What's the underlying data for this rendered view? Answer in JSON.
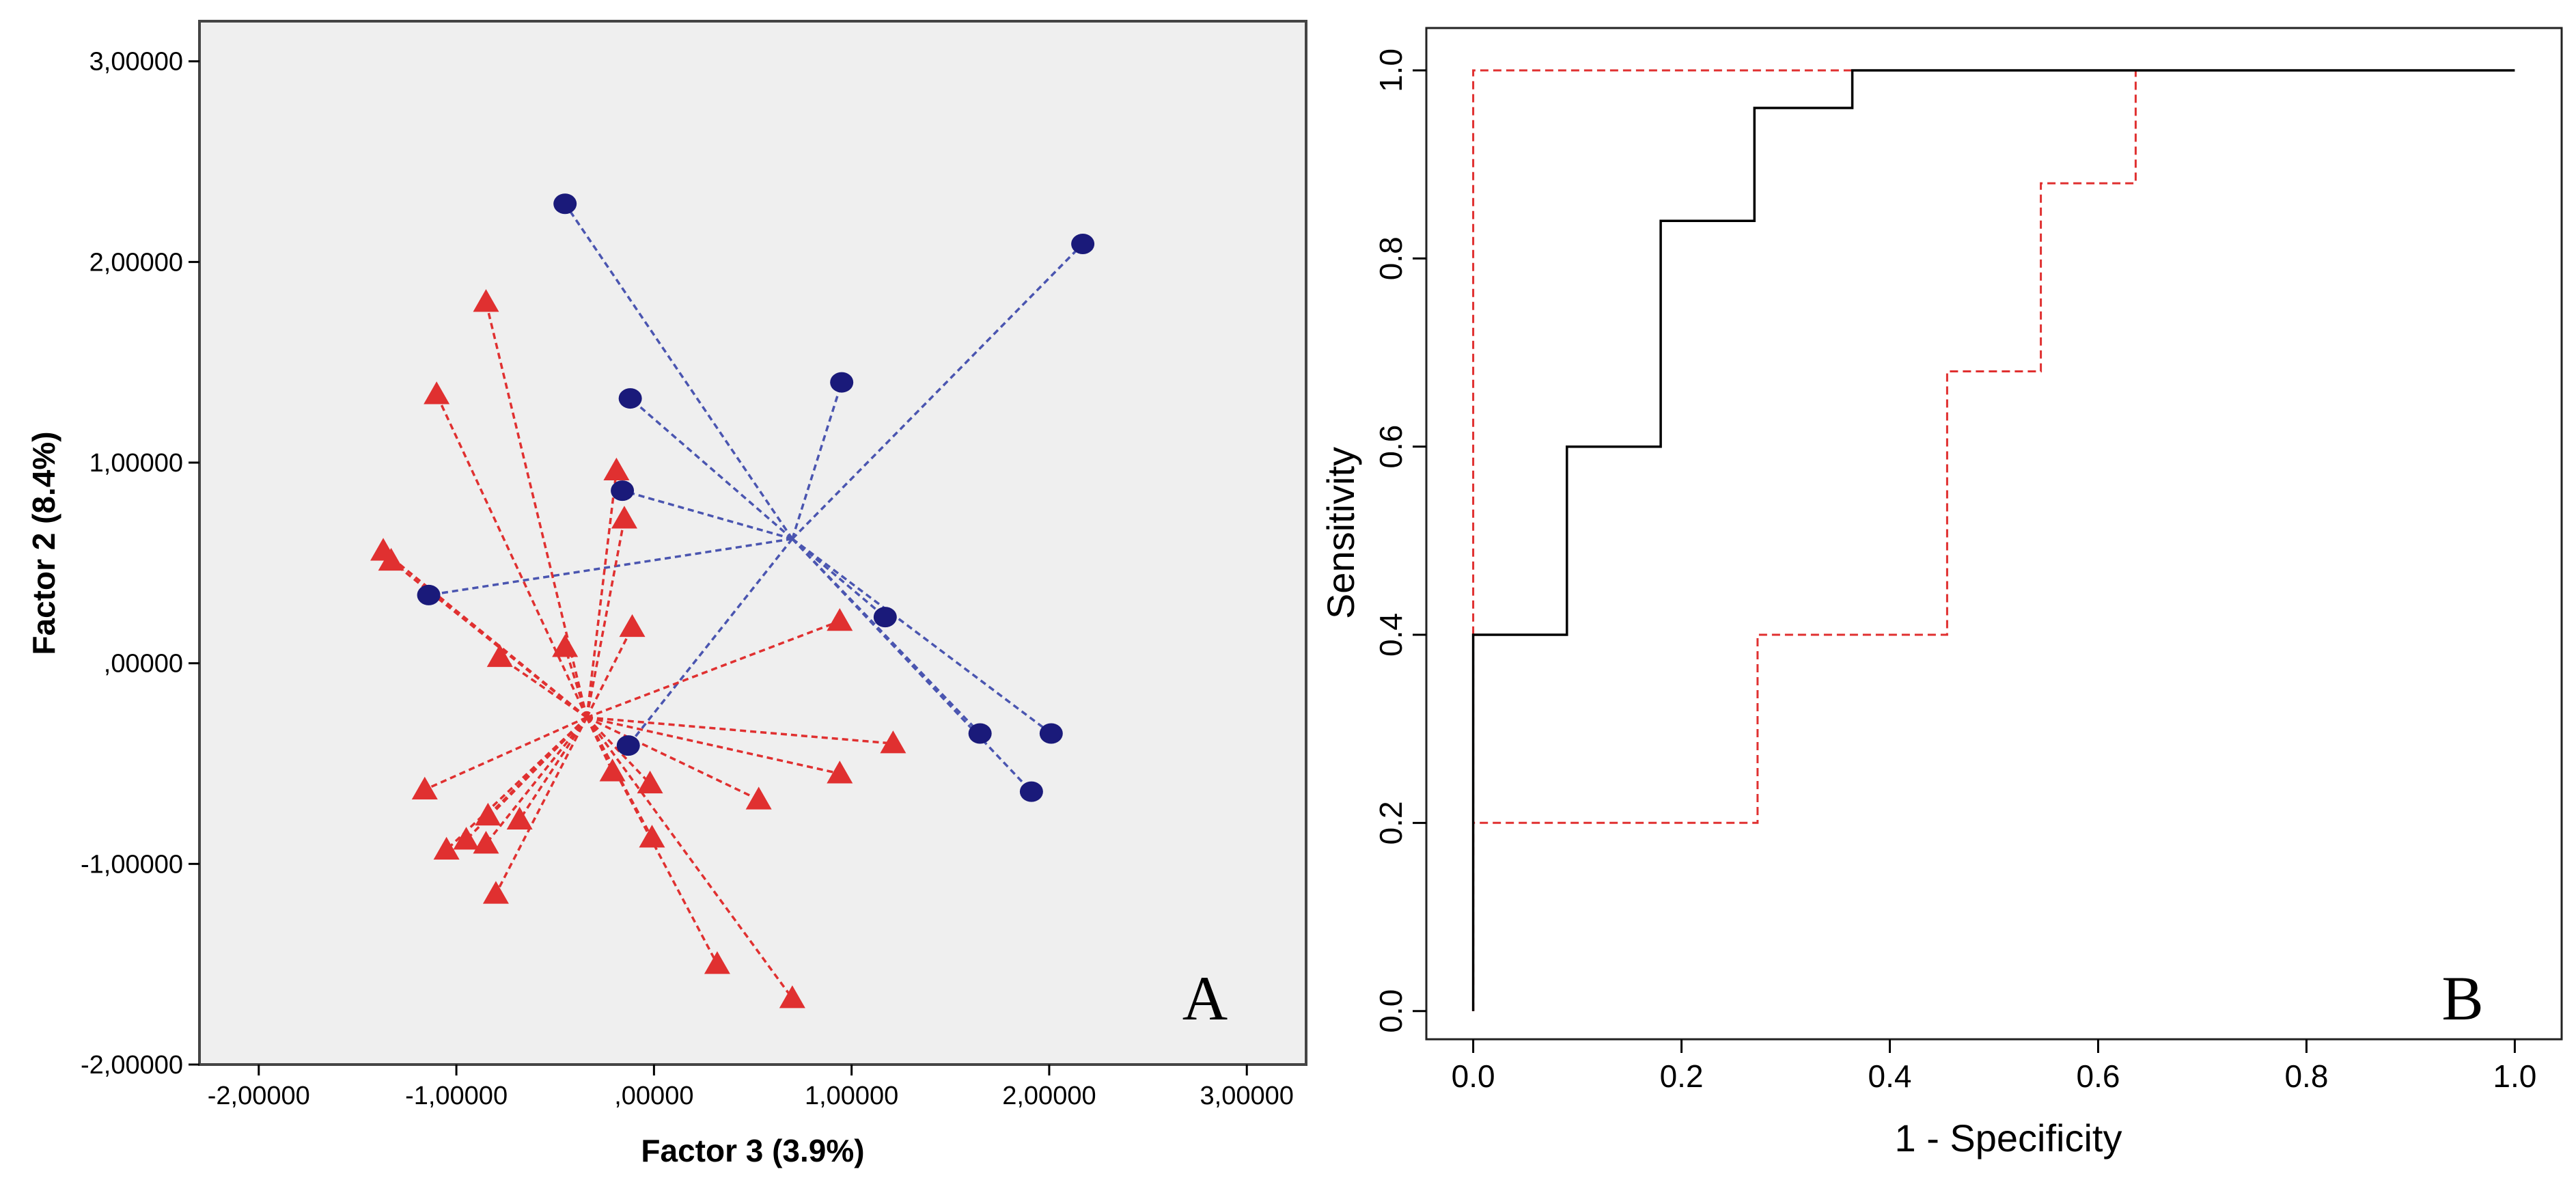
{
  "chart_data": [
    {
      "panel": "A",
      "type": "scatter",
      "panel_label": "A",
      "xlabel": "Factor 3 (3.9%)",
      "ylabel": "Factor 2 (8.4%)",
      "xlim": [
        -2.3,
        3.3
      ],
      "ylim": [
        -2.0,
        3.2
      ],
      "x_ticks": [
        -2,
        -1,
        0,
        1,
        2,
        3
      ],
      "x_tick_labels": [
        "-2,00000",
        "-1,00000",
        ",00000",
        "1,00000",
        "2,00000",
        "3,00000"
      ],
      "y_ticks": [
        -2,
        -1,
        0,
        1,
        2,
        3
      ],
      "y_tick_labels": [
        "-2,00000",
        "-1,00000",
        ",00000",
        "1,00000",
        "2,00000",
        "3,00000"
      ],
      "background": "#efefef",
      "series": [
        {
          "marker": "circle",
          "color": "#1a1a7a",
          "line_color": "#4a55b0",
          "centroid": [
            0.7,
            0.62
          ],
          "points": [
            [
              -0.45,
              2.29
            ],
            [
              2.17,
              2.09
            ],
            [
              -0.12,
              1.32
            ],
            [
              0.95,
              1.4
            ],
            [
              -0.16,
              0.86
            ],
            [
              -1.14,
              0.34
            ],
            [
              1.17,
              0.23
            ],
            [
              1.65,
              -0.35
            ],
            [
              2.01,
              -0.35
            ],
            [
              1.91,
              -0.64
            ],
            [
              -0.13,
              -0.41
            ]
          ]
        },
        {
          "marker": "triangle",
          "color": "#e03030",
          "line_color": "#e03030",
          "centroid": [
            -0.34,
            -0.27
          ],
          "points": [
            [
              -0.85,
              1.8
            ],
            [
              -1.1,
              1.34
            ],
            [
              -0.19,
              0.96
            ],
            [
              -0.15,
              0.72
            ],
            [
              -1.37,
              0.56
            ],
            [
              -1.33,
              0.51
            ],
            [
              -0.11,
              0.18
            ],
            [
              0.94,
              0.21
            ],
            [
              -0.45,
              0.08
            ],
            [
              -0.78,
              0.03
            ],
            [
              1.21,
              -0.4
            ],
            [
              0.94,
              -0.55
            ],
            [
              -0.21,
              -0.54
            ],
            [
              -0.02,
              -0.6
            ],
            [
              0.53,
              -0.68
            ],
            [
              -1.16,
              -0.63
            ],
            [
              -0.84,
              -0.76
            ],
            [
              -0.68,
              -0.78
            ],
            [
              -0.95,
              -0.88
            ],
            [
              -1.05,
              -0.93
            ],
            [
              -0.85,
              -0.9
            ],
            [
              -0.01,
              -0.87
            ],
            [
              -0.8,
              -1.15
            ],
            [
              0.32,
              -1.5
            ],
            [
              0.7,
              -1.67
            ]
          ]
        }
      ]
    },
    {
      "panel": "B",
      "type": "line",
      "panel_label": "B",
      "xlabel": "1 - Specificity",
      "ylabel": "Sensitivity",
      "xlim": [
        -0.045,
        1.045
      ],
      "ylim": [
        -0.03,
        1.045
      ],
      "x_ticks": [
        0.0,
        0.2,
        0.4,
        0.6,
        0.8,
        1.0
      ],
      "x_tick_labels": [
        "0.0",
        "0.2",
        "0.4",
        "0.6",
        "0.8",
        "1.0"
      ],
      "y_ticks": [
        0.0,
        0.2,
        0.4,
        0.6,
        0.8,
        1.0
      ],
      "y_tick_labels": [
        "0.0",
        "0.2",
        "0.4",
        "0.6",
        "0.8",
        "1.0"
      ],
      "series": [
        {
          "style": "solid",
          "color": "#000000",
          "x": [
            0,
            0,
            0.09,
            0.09,
            0.18,
            0.18,
            0.27,
            0.27,
            0.364,
            0.364,
            1.0
          ],
          "y": [
            0,
            0.4,
            0.4,
            0.6,
            0.6,
            0.84,
            0.84,
            0.96,
            0.96,
            1.0,
            1.0
          ]
        },
        {
          "style": "dashed",
          "color": "#e03030",
          "x": [
            0,
            0,
            1.0
          ],
          "y": [
            0,
            1.0,
            1.0
          ]
        },
        {
          "style": "dashed",
          "color": "#e03030",
          "x": [
            0,
            0,
            0.273,
            0.273,
            0.455,
            0.455,
            0.545,
            0.545,
            0.636,
            0.636,
            1.0
          ],
          "y": [
            0,
            0.2,
            0.2,
            0.4,
            0.4,
            0.68,
            0.68,
            0.88,
            0.88,
            1.0,
            1.0
          ]
        }
      ]
    }
  ]
}
